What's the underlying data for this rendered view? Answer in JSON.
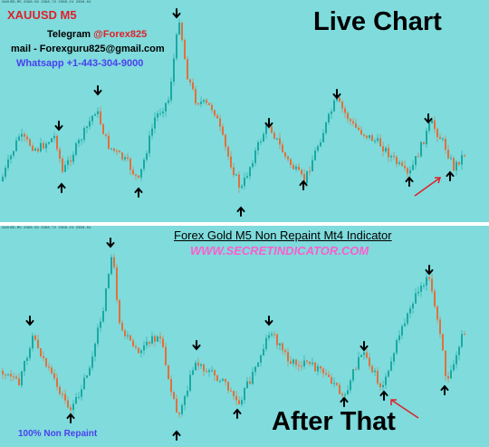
{
  "top": {
    "header_text": "XAUUSD,M5  2368.58  2368.72  2368.24  2368.64",
    "pair_label": "XAUUSD M5",
    "live_label": "Live Chart",
    "telegram_prefix": "Telegram ",
    "telegram_handle": "@Forex825",
    "mail_line": "mail - Forexguru825@gmail.com",
    "whatsapp_line": "Whatsapp +1-443-304-9000"
  },
  "bottom": {
    "header_text": "XAUUSD,M5  2368.58  2368.72  2368.24  2368.64",
    "indicator_title": "Forex Gold M5 Non Repaint Mt4 Indicator",
    "website": "WWW.SECRETINDICATOR.COM",
    "non_repaint_label": "100% Non Repaint",
    "after_label": "After That"
  },
  "colors": {
    "background": "#7fdbdc",
    "bull_candle": "#1aa9a3",
    "bear_candle": "#e2703a",
    "pair_label": "#e0202a",
    "telegram_handle": "#e0202a",
    "whatsapp": "#4b3ff0",
    "website": "#ff5ccf",
    "non_repaint": "#4b3ff0",
    "annotation_arrow": "#e0202a",
    "signal_arrow": "#000000"
  },
  "icons": [
    "arrow-up-icon",
    "arrow-down-icon"
  ]
}
